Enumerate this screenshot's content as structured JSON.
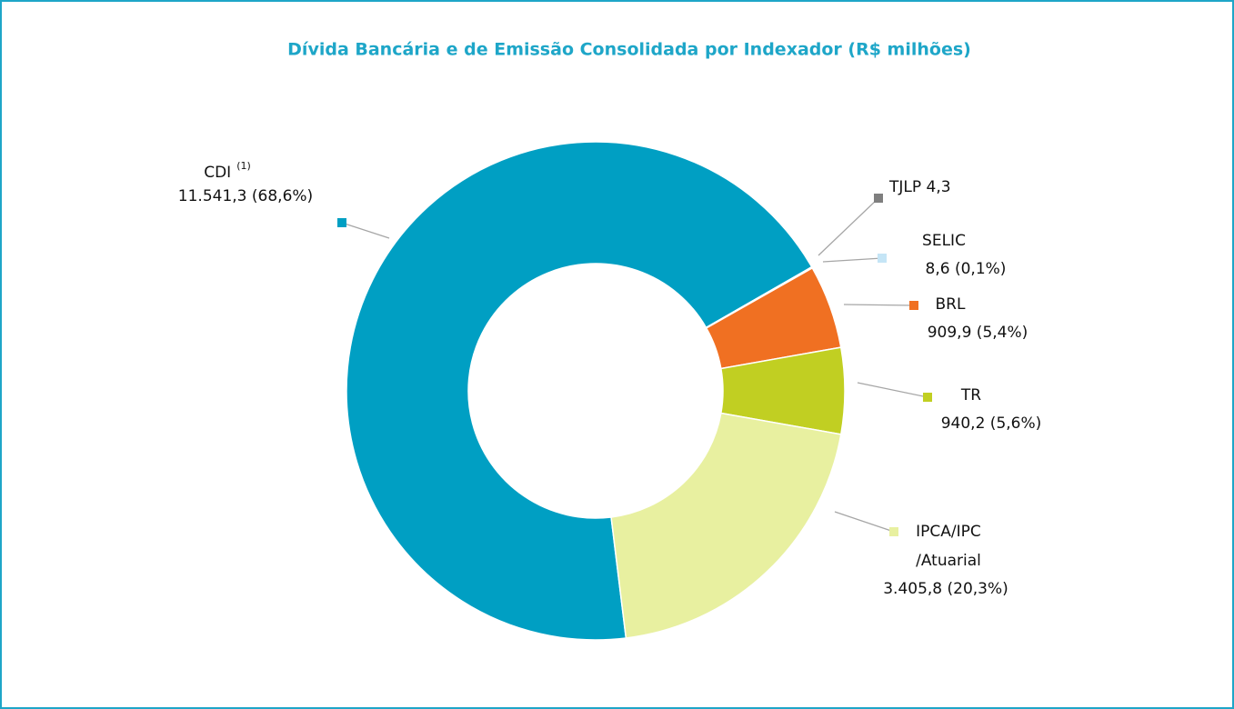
{
  "chart_data": {
    "type": "donut",
    "title": "Dívida Bancária e de Emissão Consolidada por Indexador (R$ milhões)",
    "categories": [
      "CDI",
      "TJLP",
      "SELIC",
      "BRL",
      "TR",
      "IPCA/IPC\n/Atuarial"
    ],
    "category_notes": [
      "(1)",
      null,
      null,
      null,
      null,
      null
    ],
    "values": [
      11541.3,
      4.3,
      8.6,
      909.9,
      940.2,
      3405.8
    ],
    "value_labels": [
      "11.541,3 (68,6%)",
      "4,3",
      "8,6  (0,1%)",
      "909,9  (5,4%)",
      "940,2 (5,6%)",
      "3.405,8 (20,3%)"
    ],
    "colors": [
      "#009fc3",
      "#7f7f7f",
      "#c5e5f6",
      "#f07022",
      "#c1cf22",
      "#e8f0a0"
    ]
  }
}
